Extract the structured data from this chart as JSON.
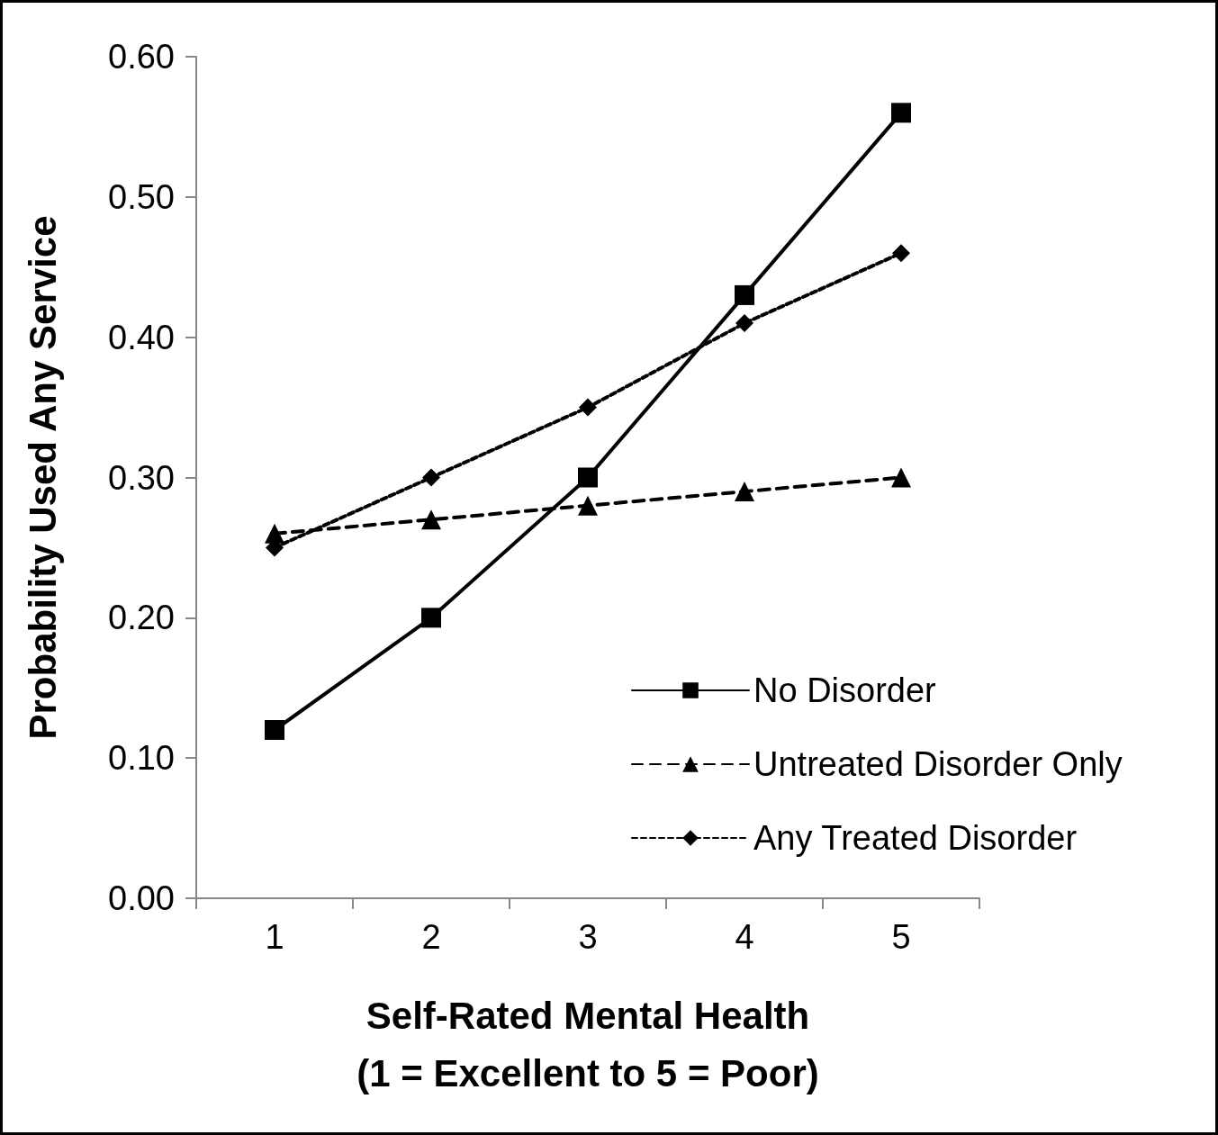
{
  "chart_data": {
    "type": "line",
    "xlabel": "Self-Rated Mental Health\n(1 = Excellent to 5 = Poor)",
    "ylabel": "Probability Used Any Service",
    "categories": [
      "1",
      "2",
      "3",
      "4",
      "5"
    ],
    "series": [
      {
        "name": "No Disorder",
        "color": "#000000",
        "marker": "square",
        "line_style": "solid",
        "values": [
          0.12,
          0.2,
          0.3,
          0.43,
          0.56
        ]
      },
      {
        "name": "Untreated Disorder Only",
        "color": "#000000",
        "marker": "triangle",
        "line_style": "dashed",
        "values": [
          0.26,
          0.27,
          0.28,
          0.29,
          0.3
        ]
      },
      {
        "name": "Any Treated Disorder",
        "color": "#000000",
        "marker": "diamond",
        "line_style": "dotted",
        "values": [
          0.25,
          0.3,
          0.35,
          0.41,
          0.46
        ]
      }
    ],
    "ylim": [
      0,
      0.6
    ],
    "yticks": [
      {
        "value": 0,
        "label": "0.00"
      },
      {
        "value": 0.1,
        "label": "0.10"
      },
      {
        "value": 0.2,
        "label": "0.20"
      },
      {
        "value": 0.3,
        "label": "0.30"
      },
      {
        "value": 0.4,
        "label": "0.40"
      },
      {
        "value": 0.5,
        "label": "0.50"
      },
      {
        "value": 0.6,
        "label": "0.60"
      }
    ],
    "grid": false,
    "legend": "bottom right"
  }
}
